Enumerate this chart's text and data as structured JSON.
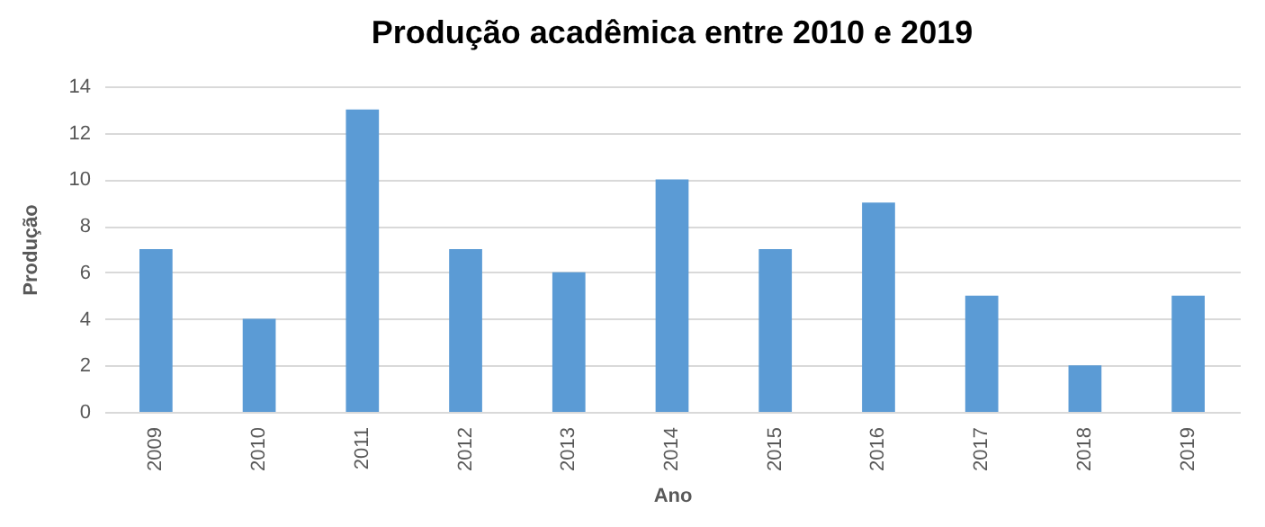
{
  "chart_data": {
    "type": "bar",
    "title": "Produção acadêmica entre 2010 e 2019",
    "xlabel": "Ano",
    "ylabel": "Produção",
    "categories": [
      "2009",
      "2010",
      "2011",
      "2012",
      "2013",
      "2014",
      "2015",
      "2016",
      "2017",
      "2018",
      "2019"
    ],
    "values": [
      7,
      4,
      13,
      7,
      6,
      10,
      7,
      9,
      5,
      2,
      5
    ],
    "color": "#5b9bd5",
    "ylim": [
      0,
      14
    ],
    "yticks": [
      0,
      2,
      4,
      6,
      8,
      10,
      12,
      14
    ],
    "grid": "y"
  }
}
